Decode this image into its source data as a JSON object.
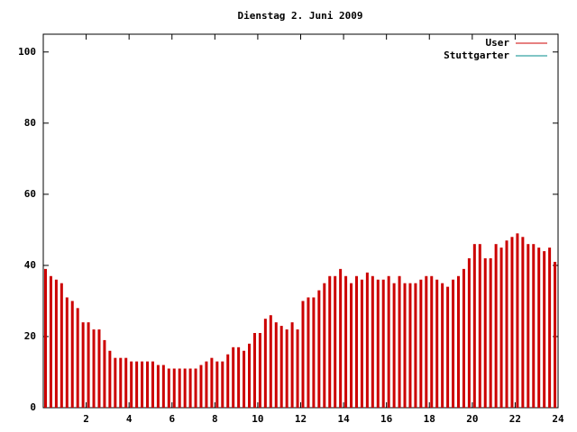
{
  "chart_data": {
    "type": "bar",
    "title": "Dienstag 2. Juni 2009",
    "x": [
      0,
      0.25,
      0.5,
      0.75,
      1,
      1.25,
      1.5,
      1.75,
      2,
      2.25,
      2.5,
      2.75,
      3,
      3.25,
      3.5,
      3.75,
      4,
      4.25,
      4.5,
      4.75,
      5,
      5.25,
      5.5,
      5.75,
      6,
      6.25,
      6.5,
      6.75,
      7,
      7.25,
      7.5,
      7.75,
      8,
      8.25,
      8.5,
      8.75,
      9,
      9.25,
      9.5,
      9.75,
      10,
      10.25,
      10.5,
      10.75,
      11,
      11.25,
      11.5,
      11.75,
      12,
      12.25,
      12.5,
      12.75,
      13,
      13.25,
      13.5,
      13.75,
      14,
      14.25,
      14.5,
      14.75,
      15,
      15.25,
      15.5,
      15.75,
      16,
      16.25,
      16.5,
      16.75,
      17,
      17.25,
      17.5,
      17.75,
      18,
      18.25,
      18.5,
      18.75,
      19,
      19.25,
      19.5,
      19.75,
      20,
      20.25,
      20.5,
      20.75,
      21,
      21.25,
      21.5,
      21.75,
      22,
      22.25,
      22.5,
      22.75,
      23,
      23.25,
      23.5,
      23.75
    ],
    "series": [
      {
        "name": "User",
        "color": "#cc0000",
        "values": [
          39,
          37,
          36,
          35,
          31,
          30,
          28,
          24,
          24,
          22,
          22,
          19,
          16,
          14,
          14,
          14,
          13,
          13,
          13,
          13,
          13,
          12,
          12,
          11,
          11,
          11,
          11,
          11,
          11,
          12,
          13,
          14,
          13,
          13,
          15,
          17,
          17,
          16,
          18,
          21,
          21,
          25,
          26,
          24,
          23,
          22,
          24,
          22,
          30,
          31,
          31,
          33,
          35,
          37,
          37,
          39,
          37,
          35,
          37,
          36,
          38,
          37,
          36,
          36,
          37,
          35,
          37,
          35,
          35,
          35,
          36,
          37,
          37,
          36,
          35,
          34,
          36,
          37,
          39,
          42,
          46,
          46,
          42,
          42,
          46,
          45,
          47,
          48,
          49,
          48,
          46,
          46,
          45,
          44,
          45,
          41
        ]
      },
      {
        "name": "Stuttgarter",
        "color": "#008b8b"
      }
    ],
    "xlim": [
      0,
      24
    ],
    "xticks": [
      2,
      4,
      6,
      8,
      10,
      12,
      14,
      16,
      18,
      20,
      22,
      24
    ],
    "ylim": [
      0,
      105
    ],
    "yticks": [
      0,
      20,
      40,
      60,
      80,
      100
    ]
  }
}
